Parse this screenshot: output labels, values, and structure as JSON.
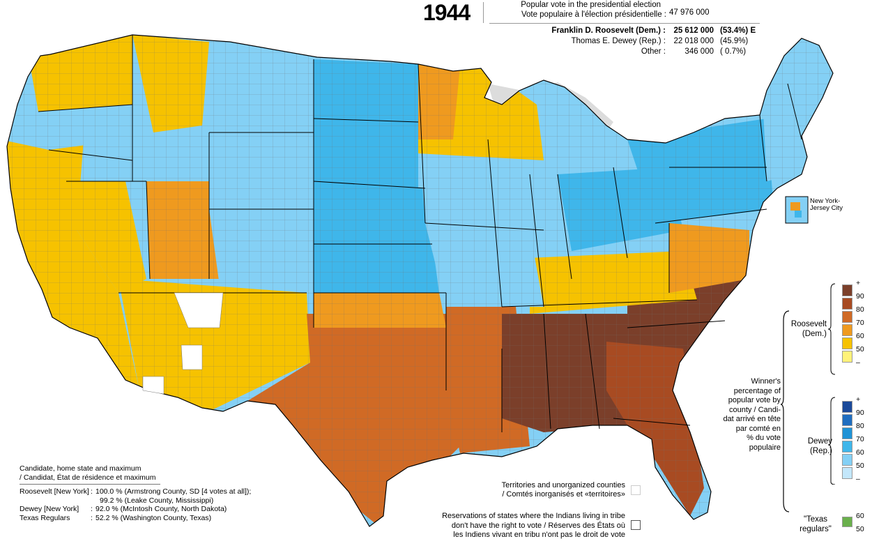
{
  "title": {
    "year": "1944",
    "popular_vote_label_en": "Popular vote in the presidential election",
    "popular_vote_label_fr": "Vote populaire à l'élection présidentielle :",
    "popular_vote_total": "47 976 000"
  },
  "results": [
    {
      "label": "Franklin D. Roosevelt (Dem.) :",
      "votes": "25 612 000",
      "pct": "(53.4%) E",
      "bold": true
    },
    {
      "label": "Thomas E. Dewey (Rep.) :",
      "votes": "22 018 000",
      "pct": "(45.9%)",
      "bold": false
    },
    {
      "label": "Other :",
      "votes": "346 000",
      "pct": "(  0.7%)",
      "bold": false
    }
  ],
  "inset": {
    "label_line1": "New York-",
    "label_line2": "Jersey City"
  },
  "legend": {
    "caption": [
      "Winner's",
      "percentage of",
      "popular vote by",
      "county / Candi-",
      "dat arrivé en tête",
      "par comté en",
      "% du vote",
      "populaire"
    ],
    "roosevelt": {
      "name_line1": "Roosevelt",
      "name_line2": "(Dem.)",
      "colors": [
        "#7b3f2a",
        "#a84b22",
        "#d06a25",
        "#ef9a1f",
        "#f6c200",
        "#fff27a"
      ],
      "ticks": [
        "+",
        "90",
        "80",
        "70",
        "60",
        "50",
        "–"
      ]
    },
    "dewey": {
      "name_line1": "Dewey",
      "name_line2": "(Rep.)",
      "colors": [
        "#1b4a9a",
        "#1f6ec0",
        "#1f93d6",
        "#3fb6ea",
        "#84d0f5",
        "#c3e7fb"
      ],
      "ticks": [
        "+",
        "90",
        "80",
        "70",
        "60",
        "50",
        "–"
      ]
    },
    "texas_regulars": {
      "name_line1": "\"Texas",
      "name_line2": "regulars\"",
      "color": "#6ab04c",
      "ticks": [
        "60",
        "50"
      ]
    }
  },
  "notes": {
    "territories": [
      "Territories and unorganized counties",
      "/ Comtés inorganisés et «territoires»"
    ],
    "reservations": [
      "Reservations of states where the Indians living in tribe",
      "don't have the right to vote / Réserves des États où",
      "les Indiens vivant en tribu n'ont pas le droit de vote"
    ]
  },
  "maximum": {
    "heading": [
      "Candidate, home state and maximum",
      "/ Candidat, État de résidence et maximum"
    ],
    "rows": [
      {
        "who": "Roosevelt [New York]",
        "sep": ":",
        "value": "100.0 % (Armstrong County, SD [4 votes at all]);"
      },
      {
        "who": "",
        "sep": "",
        "value": "99.2 % (Leake County, Mississippi)"
      },
      {
        "who": "Dewey [New York]",
        "sep": ":",
        "value": "92.0 % (McIntosh County, North Dakota)"
      },
      {
        "who": "Texas Regulars",
        "sep": ":",
        "value": "52.2 % (Washington County, Texas)"
      }
    ]
  }
}
